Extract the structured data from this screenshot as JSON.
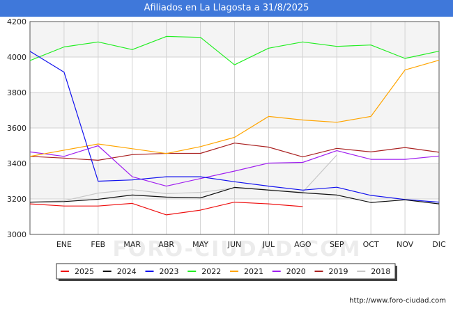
{
  "title": "Afiliados en La Llagosta a 31/8/2025",
  "watermark": "FORO-CIUDAD.COM",
  "footer": {
    "url": "http://www.foro-ciudad.com"
  },
  "chart_data": {
    "type": "line",
    "title": "Afiliados en La Llagosta a 31/8/2025",
    "xlabel": "",
    "ylabel": "",
    "categories": [
      "",
      "ENE",
      "FEB",
      "MAR",
      "ABR",
      "MAY",
      "JUN",
      "JUL",
      "AGO",
      "SEP",
      "OCT",
      "NOV",
      "DIC"
    ],
    "ylim": [
      3000,
      4200
    ],
    "yticks": [
      3000,
      3200,
      3400,
      3600,
      3800,
      4000,
      4200
    ],
    "grid": true,
    "legend_position": "bottom",
    "series": [
      {
        "name": "2025",
        "color": "#ee1111",
        "values": [
          3172,
          3160,
          3160,
          3175,
          3110,
          3137,
          3182,
          3172,
          3157,
          null,
          null,
          null,
          null
        ]
      },
      {
        "name": "2024",
        "color": "#111111",
        "values": [
          3182,
          3185,
          3198,
          3222,
          3210,
          3206,
          3265,
          3250,
          3235,
          3222,
          3180,
          3195,
          3172
        ]
      },
      {
        "name": "2023",
        "color": "#1111ee",
        "values": [
          4032,
          3915,
          3300,
          3307,
          3325,
          3325,
          3297,
          3272,
          3250,
          3266,
          3220,
          3197,
          3182
        ]
      },
      {
        "name": "2022",
        "color": "#22ee22",
        "values": [
          3980,
          4057,
          4085,
          4042,
          4116,
          4111,
          3956,
          4050,
          4085,
          4060,
          4068,
          3992,
          4033
        ]
      },
      {
        "name": "2021",
        "color": "#ffa500",
        "values": [
          3440,
          null,
          3510,
          3483,
          3456,
          3495,
          3547,
          3665,
          3645,
          3632,
          3665,
          3927,
          3982
        ]
      },
      {
        "name": "2020",
        "color": "#a020f0",
        "values": [
          3465,
          3440,
          3500,
          3325,
          3272,
          3315,
          3357,
          3402,
          3406,
          3472,
          3423,
          3423,
          3442
        ]
      },
      {
        "name": "2019",
        "color": "#aa2222",
        "values": [
          3440,
          3430,
          3418,
          3450,
          3457,
          3457,
          3515,
          3492,
          3437,
          3485,
          3465,
          3490,
          3463
        ]
      },
      {
        "name": "2018",
        "color": "#c8c8c8",
        "values": [
          3182,
          3190,
          3233,
          3252,
          3230,
          3237,
          3262,
          3252,
          3238,
          3448,
          null,
          null,
          null
        ]
      }
    ]
  }
}
